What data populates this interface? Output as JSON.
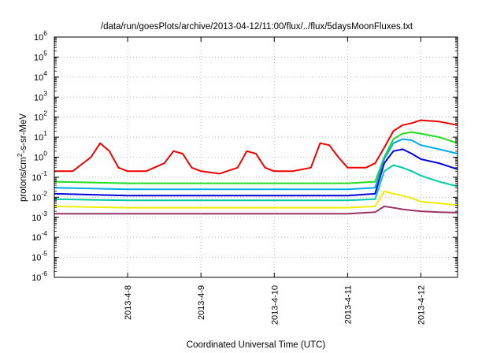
{
  "chart_data": {
    "type": "line",
    "title": "/data/run/goesPlots/archive/2013-04-12/11:00/flux/../flux/5daysMoonFluxes.txt",
    "xlabel": "Coordinated Universal Time (UTC)",
    "ylabel": {
      "base": "protons/cm",
      "sup": "2",
      "rest": "-s-sr-MeV"
    },
    "y_scale": "log",
    "ylim": [
      1e-06,
      1000000.0
    ],
    "y_ticks": [
      {
        "value": -6,
        "base": "10",
        "exp": "-6"
      },
      {
        "value": -5,
        "base": "10",
        "exp": "-5"
      },
      {
        "value": -4,
        "base": "10",
        "exp": "-4"
      },
      {
        "value": -3,
        "base": "10",
        "exp": "-3"
      },
      {
        "value": -2,
        "base": "10",
        "exp": "-2"
      },
      {
        "value": -1,
        "base": "10",
        "exp": "-1"
      },
      {
        "value": 0,
        "base": "10",
        "exp": "0"
      },
      {
        "value": 1,
        "base": "10",
        "exp": "1"
      },
      {
        "value": 2,
        "base": "10",
        "exp": "2"
      },
      {
        "value": 3,
        "base": "10",
        "exp": "3"
      },
      {
        "value": 4,
        "base": "10",
        "exp": "4"
      },
      {
        "value": 5,
        "base": "10",
        "exp": "5"
      },
      {
        "value": 6,
        "base": "10",
        "exp": "6"
      }
    ],
    "xlim": [
      "2013-04-07 00:00",
      "2013-04-12 12:00"
    ],
    "x_ticks": [
      {
        "x": "2013-04-08 00:00",
        "label": "2013-4-8"
      },
      {
        "x": "2013-04-09 00:00",
        "label": "2013-4-9"
      },
      {
        "x": "2013-04-10 00:00",
        "label": "2013-4-10"
      },
      {
        "x": "2013-04-11 00:00",
        "label": "2013-4-11"
      },
      {
        "x": "2013-04-12 00:00",
        "label": "2013-4-12"
      }
    ],
    "grid": true,
    "legend": "none",
    "series": [
      {
        "color": "#ee0000",
        "x": [
          "2013-04-07 00:00",
          "2013-04-07 06:00",
          "2013-04-07 12:00",
          "2013-04-07 15:00",
          "2013-04-07 18:00",
          "2013-04-07 21:00",
          "2013-04-08 00:00",
          "2013-04-08 06:00",
          "2013-04-08 12:00",
          "2013-04-08 15:00",
          "2013-04-08 18:00",
          "2013-04-08 21:00",
          "2013-04-09 00:00",
          "2013-04-09 06:00",
          "2013-04-09 12:00",
          "2013-04-09 15:00",
          "2013-04-09 18:00",
          "2013-04-09 21:00",
          "2013-04-10 00:00",
          "2013-04-10 06:00",
          "2013-04-10 12:00",
          "2013-04-10 15:00",
          "2013-04-10 18:00",
          "2013-04-10 21:00",
          "2013-04-11 00:00",
          "2013-04-11 06:00",
          "2013-04-11 09:00",
          "2013-04-11 12:00",
          "2013-04-11 15:00",
          "2013-04-11 18:00",
          "2013-04-11 21:00",
          "2013-04-12 00:00",
          "2013-04-12 06:00",
          "2013-04-12 12:00"
        ],
        "y": [
          0.2,
          0.2,
          1,
          5,
          2,
          0.3,
          0.2,
          0.2,
          0.5,
          2,
          1.5,
          0.3,
          0.2,
          0.15,
          0.3,
          2,
          1.5,
          0.3,
          0.2,
          0.2,
          0.3,
          5,
          4,
          1,
          0.3,
          0.3,
          0.5,
          3,
          20,
          40,
          50,
          70,
          60,
          40
        ]
      },
      {
        "color": "#22dd22",
        "x": [
          "2013-04-07 00:00",
          "2013-04-08 00:00",
          "2013-04-09 00:00",
          "2013-04-10 00:00",
          "2013-04-11 00:00",
          "2013-04-11 09:00",
          "2013-04-11 12:00",
          "2013-04-11 15:00",
          "2013-04-11 18:00",
          "2013-04-11 21:00",
          "2013-04-12 00:00",
          "2013-04-12 06:00",
          "2013-04-12 12:00"
        ],
        "y": [
          0.06,
          0.05,
          0.05,
          0.05,
          0.05,
          0.06,
          1,
          8,
          15,
          18,
          15,
          10,
          5
        ]
      },
      {
        "color": "#00aaee",
        "x": [
          "2013-04-07 00:00",
          "2013-04-08 00:00",
          "2013-04-09 00:00",
          "2013-04-10 00:00",
          "2013-04-11 00:00",
          "2013-04-11 09:00",
          "2013-04-11 12:00",
          "2013-04-11 15:00",
          "2013-04-11 18:00",
          "2013-04-11 21:00",
          "2013-04-12 00:00",
          "2013-04-12 06:00",
          "2013-04-12 12:00"
        ],
        "y": [
          0.03,
          0.025,
          0.025,
          0.025,
          0.025,
          0.03,
          0.8,
          5,
          8,
          7,
          4,
          2.5,
          1.5
        ]
      },
      {
        "color": "#0000dd",
        "x": [
          "2013-04-07 00:00",
          "2013-04-08 00:00",
          "2013-04-09 00:00",
          "2013-04-10 00:00",
          "2013-04-11 00:00",
          "2013-04-11 09:00",
          "2013-04-11 12:00",
          "2013-04-11 15:00",
          "2013-04-11 18:00",
          "2013-04-11 21:00",
          "2013-04-12 00:00",
          "2013-04-12 06:00",
          "2013-04-12 12:00"
        ],
        "y": [
          0.015,
          0.012,
          0.012,
          0.012,
          0.012,
          0.015,
          0.5,
          2,
          2.5,
          1.5,
          0.8,
          0.5,
          0.25
        ]
      },
      {
        "color": "#00ccaa",
        "x": [
          "2013-04-07 00:00",
          "2013-04-08 00:00",
          "2013-04-09 00:00",
          "2013-04-10 00:00",
          "2013-04-11 00:00",
          "2013-04-11 09:00",
          "2013-04-11 12:00",
          "2013-04-11 15:00",
          "2013-04-11 18:00",
          "2013-04-11 21:00",
          "2013-04-12 00:00",
          "2013-04-12 06:00",
          "2013-04-12 12:00"
        ],
        "y": [
          0.008,
          0.007,
          0.007,
          0.007,
          0.007,
          0.008,
          0.2,
          0.4,
          0.3,
          0.2,
          0.12,
          0.06,
          0.035
        ]
      },
      {
        "color": "#eeee00",
        "x": [
          "2013-04-07 00:00",
          "2013-04-08 00:00",
          "2013-04-09 00:00",
          "2013-04-10 00:00",
          "2013-04-11 00:00",
          "2013-04-11 09:00",
          "2013-04-11 12:00",
          "2013-04-11 15:00",
          "2013-04-11 18:00",
          "2013-04-11 21:00",
          "2013-04-12 00:00",
          "2013-04-12 06:00",
          "2013-04-12 12:00"
        ],
        "y": [
          0.0035,
          0.003,
          0.003,
          0.003,
          0.003,
          0.0035,
          0.02,
          0.015,
          0.012,
          0.009,
          0.006,
          0.005,
          0.004
        ]
      },
      {
        "color": "#993366",
        "x": [
          "2013-04-07 00:00",
          "2013-04-08 00:00",
          "2013-04-09 00:00",
          "2013-04-10 00:00",
          "2013-04-11 00:00",
          "2013-04-11 09:00",
          "2013-04-11 12:00",
          "2013-04-11 15:00",
          "2013-04-11 18:00",
          "2013-04-11 21:00",
          "2013-04-12 00:00",
          "2013-04-12 06:00",
          "2013-04-12 12:00"
        ],
        "y": [
          0.0015,
          0.0015,
          0.0015,
          0.0015,
          0.0015,
          0.0018,
          0.0035,
          0.003,
          0.0025,
          0.0022,
          0.002,
          0.0018,
          0.0017
        ]
      }
    ]
  }
}
